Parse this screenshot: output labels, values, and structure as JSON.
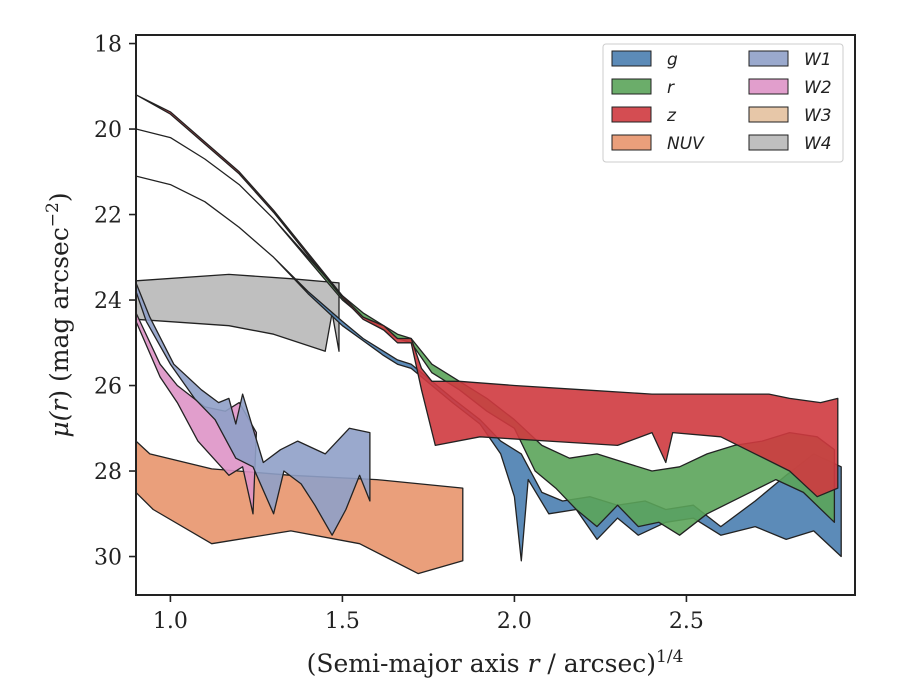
{
  "chart_data": {
    "type": "area",
    "xlabel": "(Semi-major axis r / arcsec)^1/4",
    "xlabel_parts": {
      "prefix": "(Semi-major axis ",
      "var": "r",
      "mid": " / arcsec)",
      "sup": "1/4"
    },
    "ylabel": "μ(r) (mag arcsec^−2)",
    "ylabel_parts": {
      "mu": "μ(",
      "var": "r",
      "mid": ") (mag arcsec",
      "sup": "−2",
      "end": ")"
    },
    "xlim": [
      0.9,
      2.99
    ],
    "ylim": [
      30.9,
      17.8
    ],
    "y_inverted": true,
    "xticks": [
      1.0,
      1.5,
      2.0,
      2.5
    ],
    "xtick_labels": [
      "1.0",
      "1.5",
      "2.0",
      "2.5"
    ],
    "yticks": [
      18,
      20,
      22,
      24,
      26,
      28,
      30
    ],
    "ytick_labels": [
      "18",
      "20",
      "22",
      "24",
      "26",
      "28",
      "30"
    ],
    "grid": false,
    "legend_placement": "top-right",
    "legend_columns": 2,
    "series": [
      {
        "name": "W3",
        "color": "#e4c19e",
        "upper": [
          [
            0.9,
            24.48
          ],
          [
            0.9,
            24.48
          ]
        ],
        "lower": [
          [
            0.9,
            24.48
          ],
          [
            0.9,
            24.48
          ]
        ],
        "visible": false
      },
      {
        "name": "W4",
        "color": "#b8b8b8",
        "upper": [
          [
            0.9,
            23.55
          ],
          [
            1.17,
            23.4
          ],
          [
            1.35,
            23.5
          ],
          [
            1.49,
            23.6
          ]
        ],
        "lower": [
          [
            0.9,
            24.45
          ],
          [
            1.17,
            24.6
          ],
          [
            1.3,
            24.8
          ],
          [
            1.45,
            25.2
          ],
          [
            1.47,
            24.3
          ],
          [
            1.49,
            25.2
          ]
        ]
      },
      {
        "name": "NUV",
        "color": "#e8956d",
        "upper": [
          [
            0.9,
            27.3
          ],
          [
            0.94,
            27.6
          ],
          [
            1.12,
            27.95
          ],
          [
            1.35,
            28.1
          ],
          [
            1.6,
            28.2
          ],
          [
            1.85,
            28.4
          ]
        ],
        "lower": [
          [
            0.9,
            28.5
          ],
          [
            0.95,
            28.9
          ],
          [
            1.12,
            29.7
          ],
          [
            1.35,
            29.4
          ],
          [
            1.55,
            29.7
          ],
          [
            1.72,
            30.4
          ],
          [
            1.85,
            30.1
          ]
        ]
      },
      {
        "name": "W2",
        "color": "#de94c6",
        "upper": [
          [
            0.9,
            24.3
          ],
          [
            0.97,
            25.5
          ],
          [
            1.02,
            26.0
          ],
          [
            1.1,
            26.5
          ],
          [
            1.16,
            26.6
          ],
          [
            1.2,
            26.4
          ],
          [
            1.25,
            27.1
          ]
        ],
        "lower": [
          [
            0.9,
            24.5
          ],
          [
            0.97,
            25.8
          ],
          [
            1.02,
            26.4
          ],
          [
            1.08,
            27.3
          ],
          [
            1.17,
            28.1
          ],
          [
            1.21,
            27.9
          ],
          [
            1.24,
            29.0
          ]
        ]
      },
      {
        "name": "W1",
        "color": "#8fa0c8",
        "upper": [
          [
            0.9,
            23.6
          ],
          [
            0.94,
            24.4
          ],
          [
            1.01,
            25.5
          ],
          [
            1.09,
            26.1
          ],
          [
            1.14,
            26.4
          ],
          [
            1.17,
            26.3
          ],
          [
            1.19,
            26.9
          ],
          [
            1.21,
            26.2
          ],
          [
            1.27,
            27.8
          ],
          [
            1.32,
            27.5
          ],
          [
            1.37,
            27.3
          ],
          [
            1.45,
            27.6
          ],
          [
            1.52,
            27.0
          ],
          [
            1.58,
            27.1
          ]
        ],
        "lower": [
          [
            0.9,
            23.8
          ],
          [
            0.93,
            24.5
          ],
          [
            1.0,
            25.5
          ],
          [
            1.07,
            26.3
          ],
          [
            1.13,
            26.8
          ],
          [
            1.19,
            27.7
          ],
          [
            1.24,
            27.9
          ],
          [
            1.3,
            29.0
          ],
          [
            1.33,
            28.0
          ],
          [
            1.38,
            28.3
          ],
          [
            1.42,
            28.8
          ],
          [
            1.47,
            29.5
          ],
          [
            1.51,
            28.9
          ],
          [
            1.55,
            28.1
          ],
          [
            1.58,
            28.7
          ]
        ]
      },
      {
        "name": "g",
        "color": "#4a7eb0",
        "upper": [
          [
            0.9,
            21.1
          ],
          [
            1.0,
            21.3
          ],
          [
            1.1,
            21.7
          ],
          [
            1.2,
            22.3
          ],
          [
            1.3,
            23.0
          ],
          [
            1.4,
            23.8
          ],
          [
            1.5,
            24.5
          ],
          [
            1.56,
            24.9
          ],
          [
            1.62,
            25.2
          ],
          [
            1.66,
            25.4
          ],
          [
            1.7,
            25.5
          ],
          [
            1.76,
            25.9
          ],
          [
            1.82,
            26.3
          ],
          [
            1.9,
            26.8
          ],
          [
            1.96,
            27.3
          ],
          [
            2.02,
            27.6
          ],
          [
            2.08,
            28.5
          ],
          [
            2.14,
            28.7
          ],
          [
            2.22,
            28.6
          ],
          [
            2.3,
            28.8
          ],
          [
            2.38,
            28.7
          ],
          [
            2.44,
            28.9
          ],
          [
            2.52,
            28.8
          ],
          [
            2.6,
            29.3
          ],
          [
            2.7,
            28.7
          ],
          [
            2.79,
            28.1
          ],
          [
            2.87,
            27.6
          ],
          [
            2.95,
            27.9
          ]
        ],
        "lower": [
          [
            0.9,
            21.1
          ],
          [
            1.0,
            21.3
          ],
          [
            1.1,
            21.7
          ],
          [
            1.2,
            22.3
          ],
          [
            1.3,
            23.0
          ],
          [
            1.4,
            23.85
          ],
          [
            1.5,
            24.6
          ],
          [
            1.56,
            24.95
          ],
          [
            1.62,
            25.3
          ],
          [
            1.66,
            25.5
          ],
          [
            1.7,
            25.6
          ],
          [
            1.76,
            26.0
          ],
          [
            1.82,
            26.4
          ],
          [
            1.9,
            26.9
          ],
          [
            1.96,
            27.6
          ],
          [
            2.0,
            28.6
          ],
          [
            2.02,
            30.1
          ],
          [
            2.04,
            28.2
          ],
          [
            2.1,
            29.0
          ],
          [
            2.18,
            28.9
          ],
          [
            2.24,
            29.6
          ],
          [
            2.3,
            29.1
          ],
          [
            2.36,
            29.5
          ],
          [
            2.44,
            29.2
          ],
          [
            2.52,
            29.1
          ],
          [
            2.6,
            29.5
          ],
          [
            2.7,
            29.3
          ],
          [
            2.79,
            29.6
          ],
          [
            2.87,
            29.4
          ],
          [
            2.95,
            30.0
          ]
        ]
      },
      {
        "name": "r",
        "color": "#5ba45a",
        "upper": [
          [
            0.9,
            20.0
          ],
          [
            1.0,
            20.2
          ],
          [
            1.1,
            20.7
          ],
          [
            1.2,
            21.3
          ],
          [
            1.3,
            22.1
          ],
          [
            1.4,
            23.0
          ],
          [
            1.5,
            23.9
          ],
          [
            1.56,
            24.3
          ],
          [
            1.62,
            24.6
          ],
          [
            1.66,
            24.8
          ],
          [
            1.7,
            24.9
          ],
          [
            1.76,
            25.5
          ],
          [
            1.84,
            25.9
          ],
          [
            1.92,
            26.3
          ],
          [
            2.0,
            26.8
          ],
          [
            2.08,
            27.4
          ],
          [
            2.16,
            27.7
          ],
          [
            2.24,
            27.6
          ],
          [
            2.32,
            27.8
          ],
          [
            2.4,
            28.0
          ],
          [
            2.48,
            27.9
          ],
          [
            2.56,
            27.6
          ],
          [
            2.64,
            27.4
          ],
          [
            2.72,
            27.3
          ],
          [
            2.8,
            27.1
          ],
          [
            2.88,
            27.2
          ],
          [
            2.93,
            27.5
          ]
        ],
        "lower": [
          [
            0.9,
            20.0
          ],
          [
            1.0,
            20.2
          ],
          [
            1.1,
            20.7
          ],
          [
            1.2,
            21.3
          ],
          [
            1.3,
            22.1
          ],
          [
            1.4,
            23.05
          ],
          [
            1.5,
            24.0
          ],
          [
            1.56,
            24.4
          ],
          [
            1.62,
            24.7
          ],
          [
            1.66,
            24.9
          ],
          [
            1.7,
            25.0
          ],
          [
            1.76,
            25.7
          ],
          [
            1.84,
            26.1
          ],
          [
            1.92,
            26.6
          ],
          [
            2.0,
            27.0
          ],
          [
            2.06,
            28.0
          ],
          [
            2.12,
            28.4
          ],
          [
            2.18,
            28.9
          ],
          [
            2.24,
            29.3
          ],
          [
            2.3,
            28.8
          ],
          [
            2.36,
            29.3
          ],
          [
            2.42,
            29.2
          ],
          [
            2.48,
            29.5
          ],
          [
            2.56,
            29.0
          ],
          [
            2.66,
            28.6
          ],
          [
            2.76,
            28.2
          ],
          [
            2.84,
            28.5
          ],
          [
            2.93,
            29.2
          ]
        ]
      },
      {
        "name": "z",
        "color": "#cf3a3f",
        "upper": [
          [
            0.9,
            19.2
          ],
          [
            1.0,
            19.6
          ],
          [
            1.1,
            20.3
          ],
          [
            1.2,
            21.0
          ],
          [
            1.3,
            21.9
          ],
          [
            1.4,
            22.9
          ],
          [
            1.5,
            23.9
          ],
          [
            1.56,
            24.4
          ],
          [
            1.62,
            24.6
          ],
          [
            1.66,
            24.9
          ],
          [
            1.7,
            24.9
          ],
          [
            1.73,
            25.6
          ],
          [
            1.76,
            25.9
          ],
          [
            1.84,
            25.9
          ],
          [
            2.0,
            26.0
          ],
          [
            2.2,
            26.1
          ],
          [
            2.4,
            26.2
          ],
          [
            2.6,
            26.2
          ],
          [
            2.74,
            26.2
          ],
          [
            2.8,
            26.3
          ],
          [
            2.89,
            26.4
          ],
          [
            2.94,
            26.3
          ]
        ],
        "lower": [
          [
            0.9,
            19.2
          ],
          [
            1.0,
            19.65
          ],
          [
            1.1,
            20.35
          ],
          [
            1.2,
            21.05
          ],
          [
            1.3,
            21.95
          ],
          [
            1.4,
            22.95
          ],
          [
            1.5,
            23.95
          ],
          [
            1.56,
            24.45
          ],
          [
            1.62,
            24.7
          ],
          [
            1.66,
            25.0
          ],
          [
            1.7,
            25.0
          ],
          [
            1.73,
            26.1
          ],
          [
            1.77,
            27.4
          ],
          [
            1.9,
            27.2
          ],
          [
            2.1,
            27.3
          ],
          [
            2.3,
            27.4
          ],
          [
            2.4,
            27.1
          ],
          [
            2.44,
            27.8
          ],
          [
            2.46,
            27.1
          ],
          [
            2.6,
            27.2
          ],
          [
            2.7,
            27.6
          ],
          [
            2.8,
            28.0
          ],
          [
            2.88,
            28.6
          ],
          [
            2.94,
            28.4
          ]
        ]
      }
    ],
    "legend_order": [
      "g",
      "r",
      "z",
      "NUV",
      "W1",
      "W2",
      "W3",
      "W4"
    ]
  }
}
